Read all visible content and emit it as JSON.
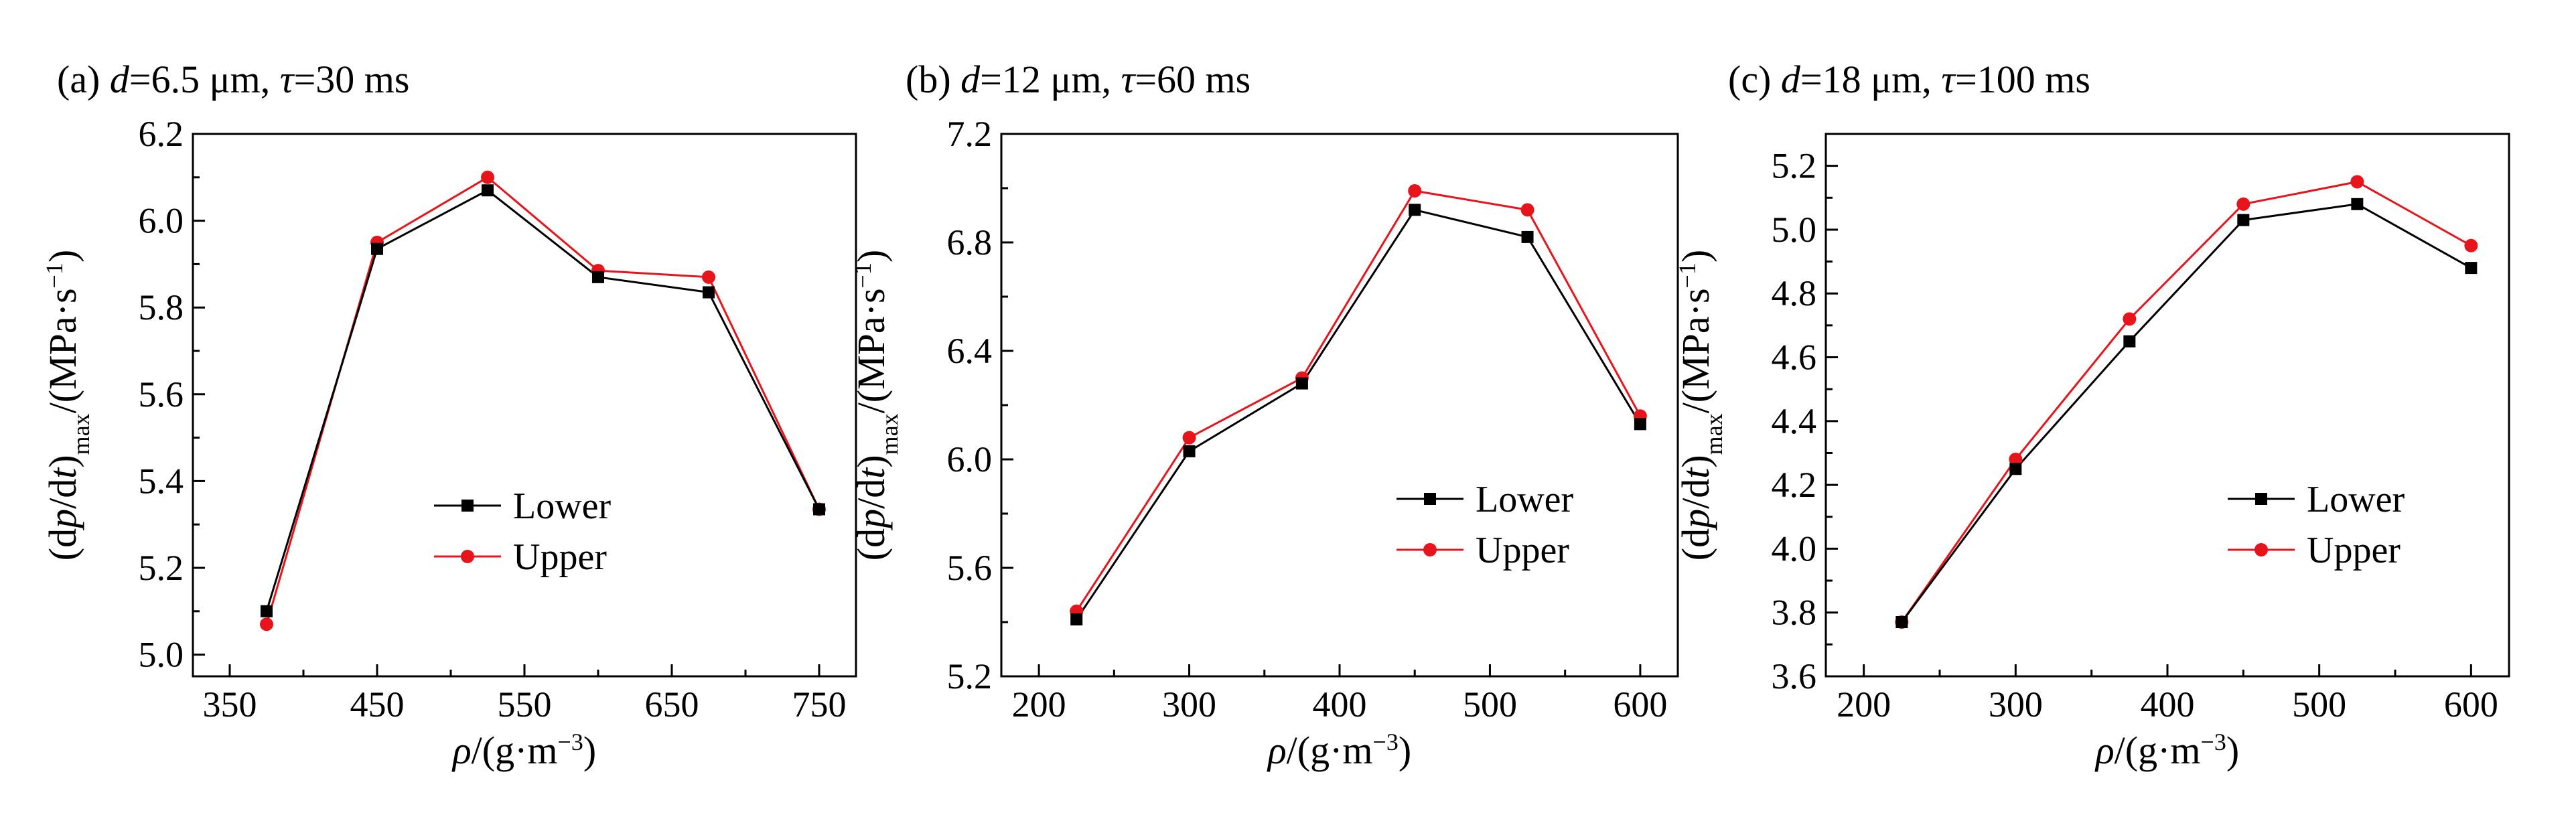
{
  "chart_data": [
    {
      "type": "line",
      "panel": "(a)",
      "title_parts": [
        {
          "t": "(a) ",
          "i": false
        },
        {
          "t": "d",
          "i": true
        },
        {
          "t": "=6.5 μm, ",
          "i": false
        },
        {
          "t": "τ",
          "i": true
        },
        {
          "t": "=30 ms",
          "i": false
        }
      ],
      "xlabel_parts": [
        {
          "t": "ρ",
          "i": true
        },
        {
          "t": "/(g·m",
          "i": false
        },
        {
          "t": "−3",
          "sup": true
        },
        {
          "t": ")",
          "i": false
        }
      ],
      "ylabel_parts": [
        {
          "t": "(d",
          "i": false
        },
        {
          "t": "p",
          "i": true
        },
        {
          "t": "/d",
          "i": false
        },
        {
          "t": "t",
          "i": true
        },
        {
          "t": ")",
          "i": false
        },
        {
          "t": "max",
          "sub": true
        },
        {
          "t": "/(MPa·s",
          "i": false
        },
        {
          "t": "−1",
          "sup": true
        },
        {
          "t": ")",
          "i": false
        }
      ],
      "xlim": [
        325,
        775
      ],
      "ylim": [
        4.95,
        6.2
      ],
      "xticks": [
        350,
        450,
        550,
        650,
        750
      ],
      "yticks": [
        5.0,
        5.2,
        5.4,
        5.6,
        5.8,
        6.0,
        6.2
      ],
      "ytick_decimals": 1,
      "x": [
        375,
        450,
        525,
        600,
        675,
        750
      ],
      "series": [
        {
          "name": "Lower",
          "color": "#000000",
          "marker": "square",
          "values": [
            5.1,
            5.935,
            6.07,
            5.87,
            5.835,
            5.335
          ]
        },
        {
          "name": "Upper",
          "color": "#e8141b",
          "marker": "circle",
          "values": [
            5.07,
            5.95,
            6.1,
            5.885,
            5.87,
            5.335
          ]
        }
      ],
      "legend": "lower-center"
    },
    {
      "type": "line",
      "panel": "(b)",
      "title_parts": [
        {
          "t": "(b) ",
          "i": false
        },
        {
          "t": "d",
          "i": true
        },
        {
          "t": "=12 μm, ",
          "i": false
        },
        {
          "t": "τ",
          "i": true
        },
        {
          "t": "=60 ms",
          "i": false
        }
      ],
      "xlabel_parts": [
        {
          "t": "ρ",
          "i": true
        },
        {
          "t": "/(g·m",
          "i": false
        },
        {
          "t": "−3",
          "sup": true
        },
        {
          "t": ")",
          "i": false
        }
      ],
      "ylabel_parts": [
        {
          "t": "(d",
          "i": false
        },
        {
          "t": "p",
          "i": true
        },
        {
          "t": "/d",
          "i": false
        },
        {
          "t": "t",
          "i": true
        },
        {
          "t": ")",
          "i": false
        },
        {
          "t": "max",
          "sub": true
        },
        {
          "t": "/(MPa·s",
          "i": false
        },
        {
          "t": "−1",
          "sup": true
        },
        {
          "t": ")",
          "i": false
        }
      ],
      "xlim": [
        175,
        625
      ],
      "ylim": [
        5.2,
        7.2
      ],
      "xticks": [
        200,
        300,
        400,
        500,
        600
      ],
      "yticks": [
        5.2,
        5.6,
        6.0,
        6.4,
        6.8,
        7.2
      ],
      "ytick_decimals": 1,
      "x": [
        225,
        300,
        375,
        450,
        525,
        600
      ],
      "series": [
        {
          "name": "Lower",
          "color": "#000000",
          "marker": "square",
          "values": [
            5.41,
            6.03,
            6.28,
            6.92,
            6.82,
            6.13
          ]
        },
        {
          "name": "Upper",
          "color": "#e8141b",
          "marker": "circle",
          "values": [
            5.44,
            6.08,
            6.3,
            6.99,
            6.92,
            6.16
          ]
        }
      ],
      "legend": "lower-right"
    },
    {
      "type": "line",
      "panel": "(c)",
      "title_parts": [
        {
          "t": "(c) ",
          "i": false
        },
        {
          "t": "d",
          "i": true
        },
        {
          "t": "=18 μm, ",
          "i": false
        },
        {
          "t": "τ",
          "i": true
        },
        {
          "t": "=100 ms",
          "i": false
        }
      ],
      "xlabel_parts": [
        {
          "t": "ρ",
          "i": true
        },
        {
          "t": "/(g·m",
          "i": false
        },
        {
          "t": "−3",
          "sup": true
        },
        {
          "t": ")",
          "i": false
        }
      ],
      "ylabel_parts": [
        {
          "t": "(d",
          "i": false
        },
        {
          "t": "p",
          "i": true
        },
        {
          "t": "/d",
          "i": false
        },
        {
          "t": "t",
          "i": true
        },
        {
          "t": ")",
          "i": false
        },
        {
          "t": "max",
          "sub": true
        },
        {
          "t": "/(MPa·s",
          "i": false
        },
        {
          "t": "−1",
          "sup": true
        },
        {
          "t": ")",
          "i": false
        }
      ],
      "xlim": [
        175,
        625
      ],
      "ylim": [
        3.6,
        5.3
      ],
      "xticks": [
        200,
        300,
        400,
        500,
        600
      ],
      "yticks": [
        3.6,
        3.8,
        4.0,
        4.2,
        4.4,
        4.6,
        4.8,
        5.0,
        5.2
      ],
      "ytick_decimals": 1,
      "x": [
        225,
        300,
        375,
        450,
        525,
        600
      ],
      "series": [
        {
          "name": "Lower",
          "color": "#000000",
          "marker": "square",
          "values": [
            3.77,
            4.25,
            4.65,
            5.03,
            5.08,
            4.88
          ]
        },
        {
          "name": "Upper",
          "color": "#e8141b",
          "marker": "circle",
          "values": [
            3.77,
            4.28,
            4.72,
            5.08,
            5.15,
            4.95
          ]
        }
      ],
      "legend": "lower-right"
    }
  ]
}
